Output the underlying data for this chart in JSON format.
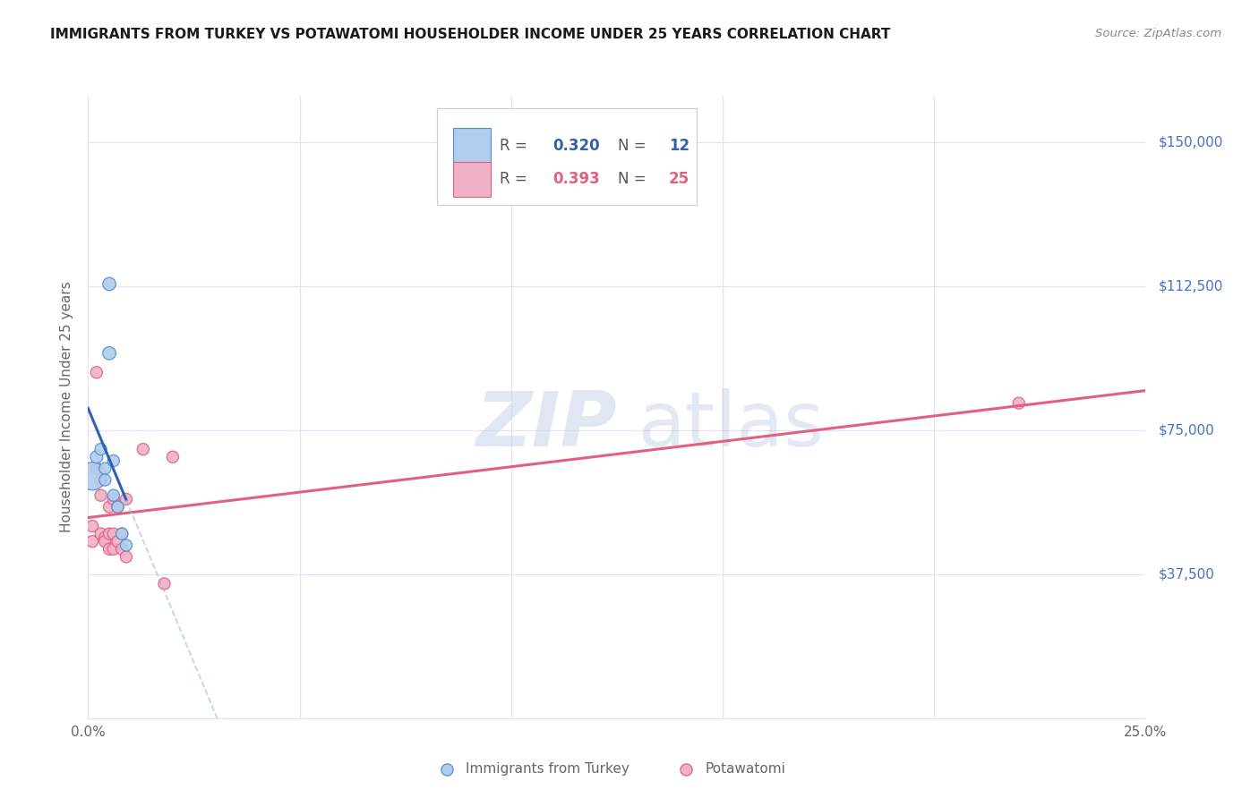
{
  "title": "IMMIGRANTS FROM TURKEY VS POTAWATOMI HOUSEHOLDER INCOME UNDER 25 YEARS CORRELATION CHART",
  "source": "Source: ZipAtlas.com",
  "ylabel": "Householder Income Under 25 years",
  "yticks": [
    0,
    37500,
    75000,
    112500,
    150000
  ],
  "ytick_labels": [
    "",
    "$37,500",
    "$75,000",
    "$112,500",
    "$150,000"
  ],
  "xlim": [
    0.0,
    0.25
  ],
  "ylim": [
    0,
    162000
  ],
  "legend_blue_r": "0.320",
  "legend_blue_n": "12",
  "legend_pink_r": "0.393",
  "legend_pink_n": "25",
  "blue_scatter_x": [
    0.001,
    0.002,
    0.003,
    0.004,
    0.004,
    0.005,
    0.005,
    0.006,
    0.006,
    0.007,
    0.008,
    0.009
  ],
  "blue_scatter_y": [
    63000,
    68000,
    70000,
    65000,
    62000,
    113000,
    95000,
    67000,
    58000,
    55000,
    48000,
    45000
  ],
  "blue_scatter_size": [
    500,
    100,
    90,
    90,
    90,
    110,
    110,
    90,
    90,
    90,
    90,
    90
  ],
  "pink_scatter_x": [
    0.001,
    0.001,
    0.002,
    0.002,
    0.003,
    0.003,
    0.003,
    0.004,
    0.004,
    0.005,
    0.005,
    0.005,
    0.006,
    0.006,
    0.006,
    0.007,
    0.007,
    0.008,
    0.008,
    0.009,
    0.009,
    0.013,
    0.018,
    0.02,
    0.22
  ],
  "pink_scatter_y": [
    50000,
    46000,
    90000,
    65000,
    62000,
    58000,
    48000,
    47000,
    46000,
    55000,
    48000,
    44000,
    57000,
    48000,
    44000,
    55000,
    46000,
    48000,
    44000,
    57000,
    42000,
    70000,
    35000,
    68000,
    82000
  ],
  "pink_scatter_size": [
    90,
    90,
    90,
    90,
    90,
    90,
    90,
    90,
    90,
    90,
    90,
    90,
    90,
    90,
    90,
    90,
    90,
    90,
    90,
    90,
    90,
    90,
    90,
    90,
    90
  ],
  "blue_fill_color": "#b0ccee",
  "blue_edge_color": "#5090cc",
  "pink_fill_color": "#f0b0c8",
  "pink_edge_color": "#e06080",
  "blue_line_color": "#3060b0",
  "pink_line_color": "#e06080",
  "blue_dash_color": "#90b8e0",
  "grid_color": "#e8e0f0",
  "bg_color": "#ffffff",
  "title_color": "#1a1a1a",
  "source_color": "#888888",
  "axis_label_color": "#666666",
  "ytick_right_color": "#4472c4",
  "xtick_color": "#666666"
}
